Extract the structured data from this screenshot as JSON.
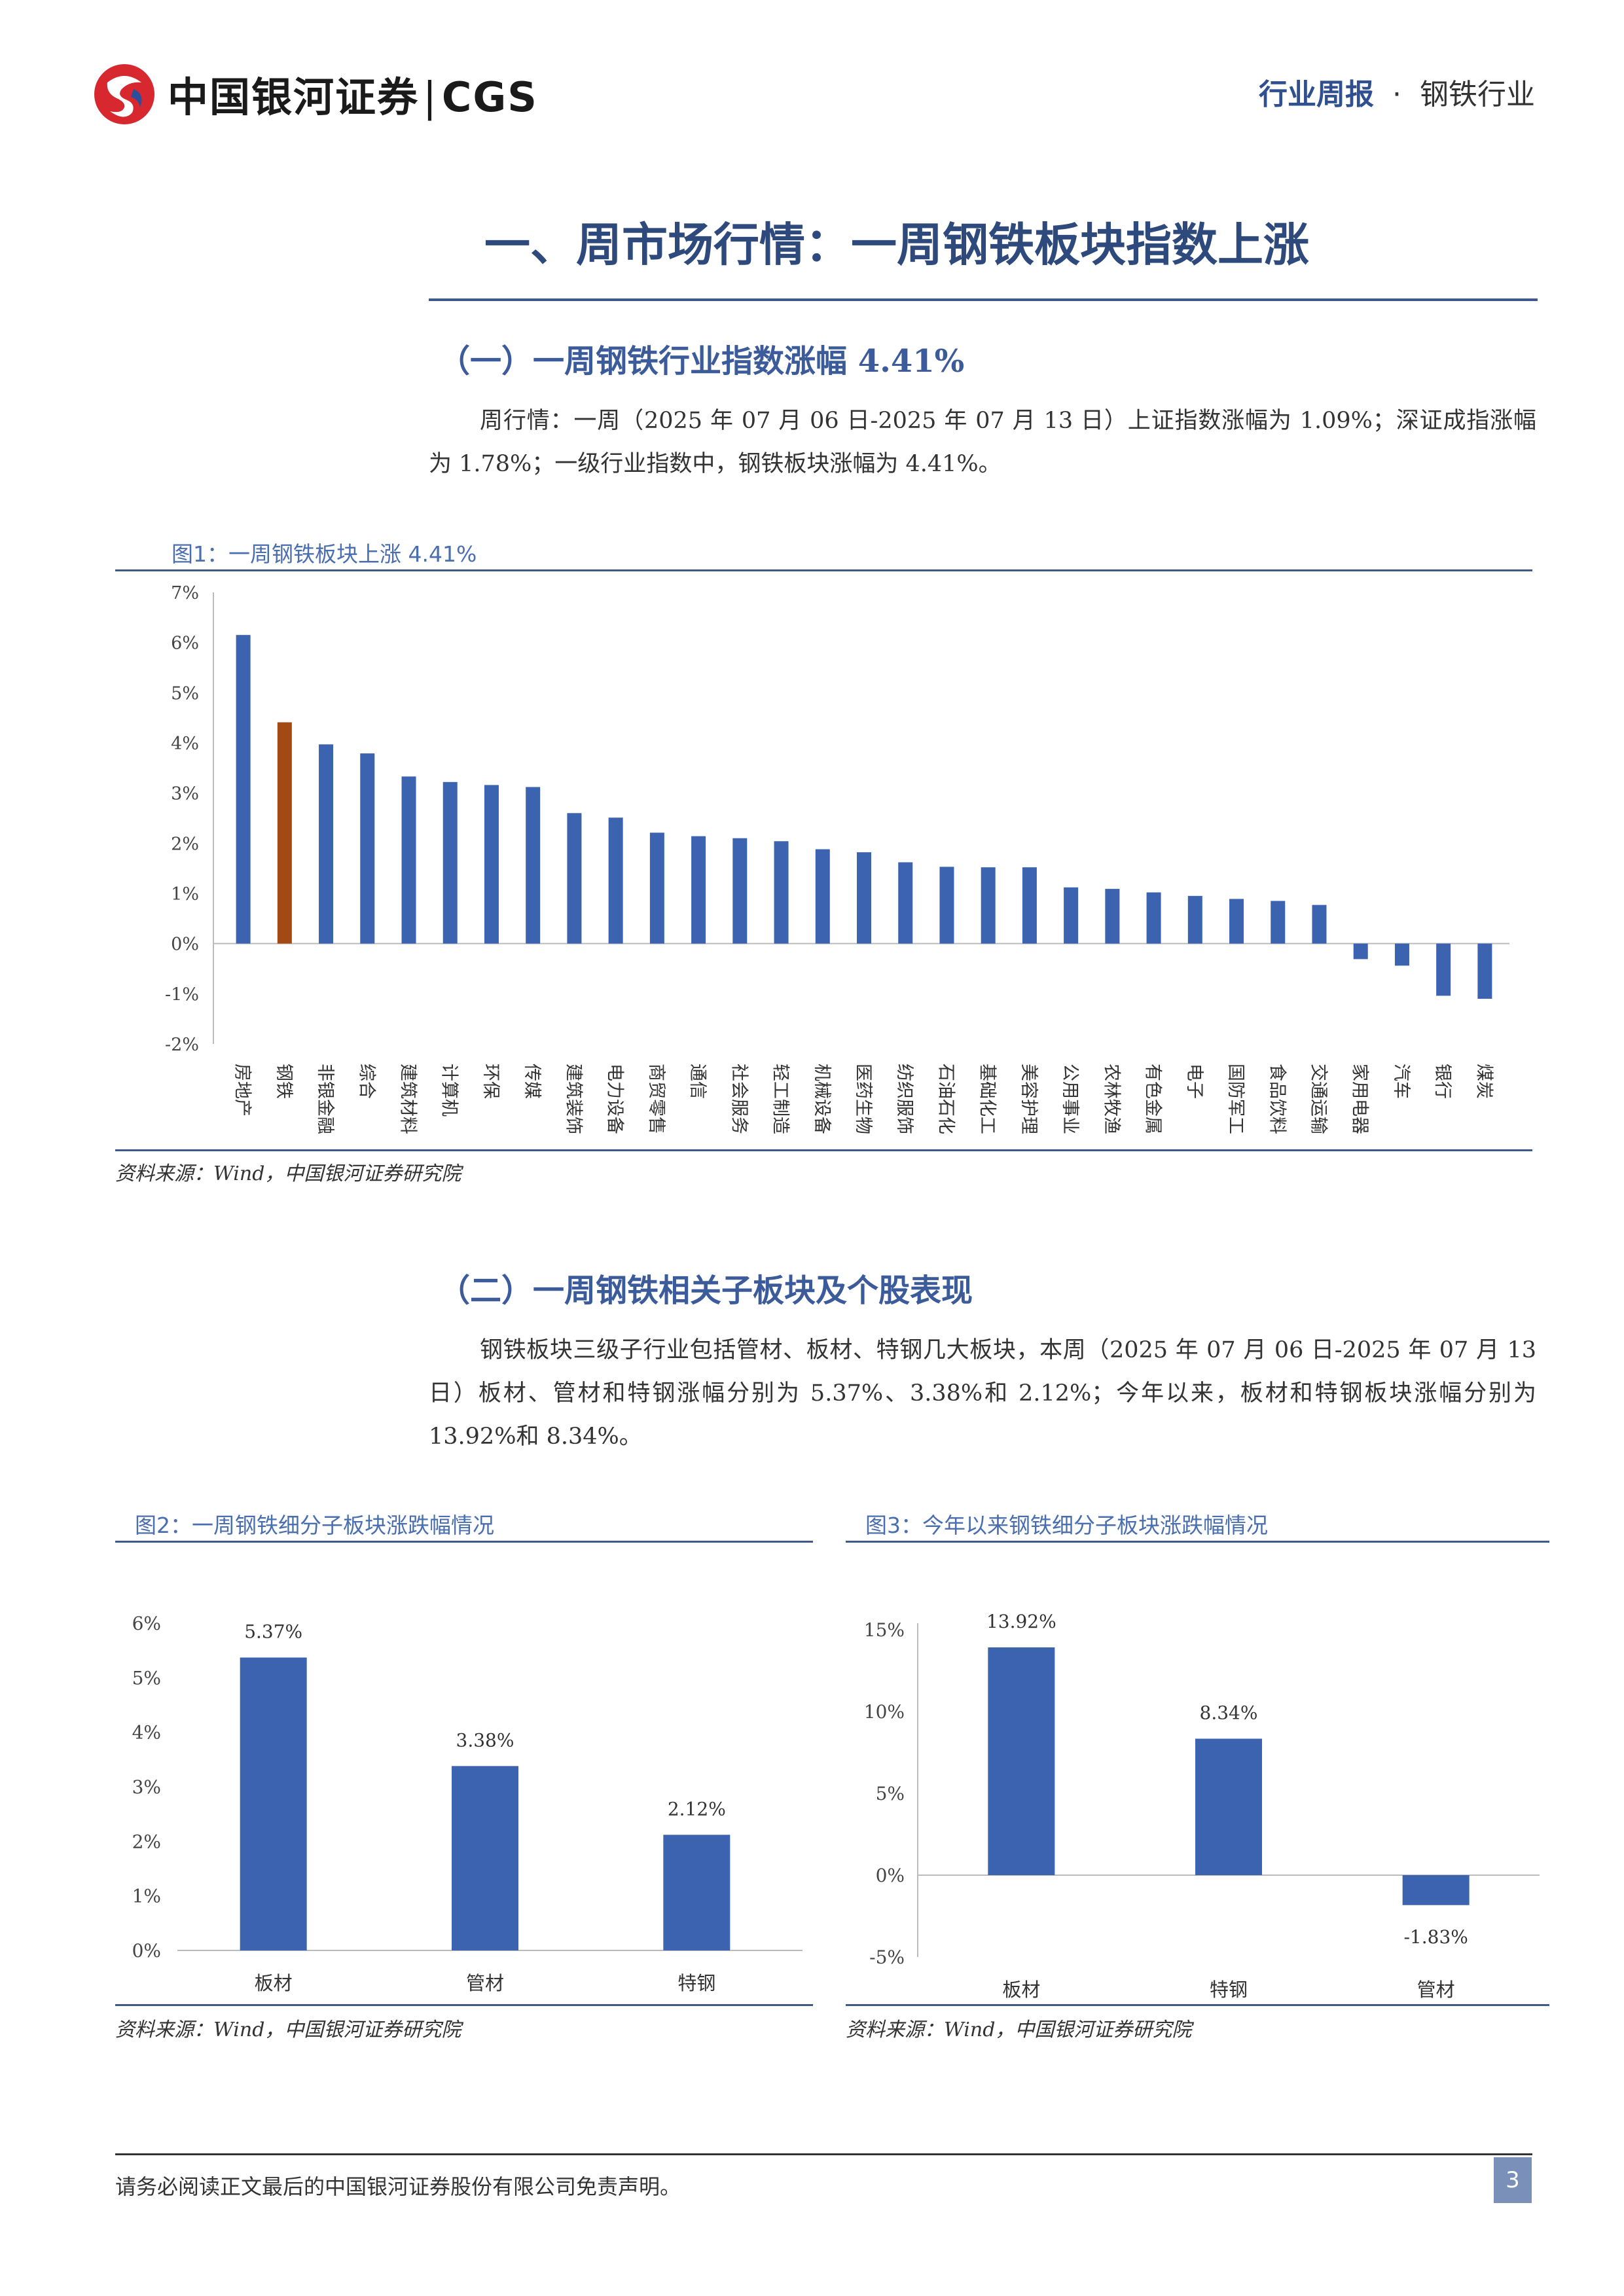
{
  "header": {
    "brand_cn": "中国银河证券",
    "brand_en": "CGS",
    "report_type": "行业周报",
    "dot": "·",
    "industry": "钢铁行业"
  },
  "section": {
    "title": "一、周市场行情：一周钢铁板块指数上涨",
    "sub1": "（一）一周钢铁行业指数涨幅 4.41%",
    "para1": "周行情：一周（2025 年 07 月 06 日-2025 年 07 月 13 日）上证指数涨幅为 1.09%；深证成指涨幅为 1.78%；一级行业指数中，钢铁板块涨幅为 4.41%。",
    "sub2": "（二）一周钢铁相关子板块及个股表现",
    "para2": "钢铁板块三级子行业包括管材、板材、特钢几大板块，本周（2025 年 07 月 06 日-2025 年 07 月 13 日）板材、管材和特钢涨幅分别为 5.37%、3.38%和 2.12%；今年以来，板材和特钢板块涨幅分别为 13.92%和 8.34%。"
  },
  "figures": {
    "fig1_caption": "图1：一周钢铁板块上涨 4.41%",
    "fig2_caption": "图2：一周钢铁细分子板块涨跌幅情况",
    "fig3_caption": "图3：今年以来钢铁细分子板块涨跌幅情况",
    "source": "资料来源：Wind，中国银河证券研究院"
  },
  "footer": {
    "disclaimer": "请务必阅读正文最后的中国银河证券股份有限公司免责声明。",
    "page": "3"
  },
  "colors": {
    "bar": "#3b63b0",
    "highlight": "#a34a14",
    "accent": "#2e4a7d"
  },
  "chart_data": [
    {
      "type": "bar",
      "title": "图1：一周钢铁板块上涨 4.41%",
      "categories": [
        "房地产",
        "钢铁",
        "非银金融",
        "综合",
        "建筑材料",
        "计算机",
        "环保",
        "传媒",
        "建筑装饰",
        "电力设备",
        "商贸零售",
        "通信",
        "社会服务",
        "轻工制造",
        "机械设备",
        "医药生物",
        "纺织服饰",
        "石油石化",
        "基础化工",
        "美容护理",
        "公用事业",
        "农林牧渔",
        "有色金属",
        "电子",
        "国防军工",
        "食品饮料",
        "交通运输",
        "家用电器",
        "汽车",
        "银行",
        "煤炭"
      ],
      "values": [
        6.15,
        4.41,
        3.97,
        3.79,
        3.33,
        3.22,
        3.16,
        3.12,
        2.6,
        2.51,
        2.21,
        2.14,
        2.1,
        2.04,
        1.88,
        1.82,
        1.62,
        1.53,
        1.52,
        1.52,
        1.12,
        1.09,
        1.02,
        0.95,
        0.89,
        0.85,
        0.77,
        -0.31,
        -0.44,
        -1.04,
        -1.1
      ],
      "highlight_index": 1,
      "ylim": [
        -2,
        7
      ],
      "yticks": [
        "7%",
        "6%",
        "5%",
        "4%",
        "3%",
        "2%",
        "1%",
        "0%",
        "-1%",
        "-2%"
      ]
    },
    {
      "type": "bar",
      "title": "图2：一周钢铁细分子板块涨跌幅情况",
      "categories": [
        "板材",
        "管材",
        "特钢"
      ],
      "values": [
        5.37,
        3.38,
        2.12
      ],
      "labels": [
        "5.37%",
        "3.38%",
        "2.12%"
      ],
      "ylim": [
        0,
        6
      ],
      "yticks": [
        "6%",
        "5%",
        "4%",
        "3%",
        "2%",
        "1%",
        "0%"
      ]
    },
    {
      "type": "bar",
      "title": "图3：今年以来钢铁细分子板块涨跌幅情况",
      "categories": [
        "板材",
        "特钢",
        "管材"
      ],
      "values": [
        13.92,
        8.34,
        -1.83
      ],
      "labels": [
        "13.92%",
        "8.34%",
        "-1.83%"
      ],
      "ylim": [
        -5,
        15
      ],
      "yticks": [
        "15%",
        "10%",
        "5%",
        "0%",
        "-5%"
      ]
    }
  ]
}
